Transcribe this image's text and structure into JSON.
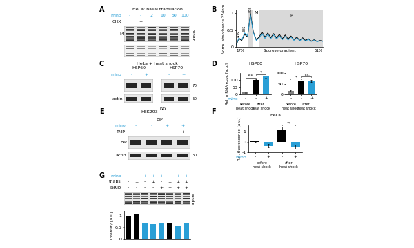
{
  "panels": {
    "A": {
      "letter": "A",
      "title": "HeLa: basal translation",
      "rows": [
        {
          "label": "mino",
          "color": "#2a9fd6",
          "cells": [
            "-",
            "-",
            "2",
            "10",
            "50",
            "100"
          ]
        },
        {
          "label": "CHX",
          "color": "#000000",
          "cells": [
            "-",
            "+",
            "-",
            "-",
            "-",
            "-"
          ]
        }
      ],
      "blot_label": "M",
      "side_label": "α-puro"
    },
    "C": {
      "letter": "C",
      "title": "HeLa + heat shock",
      "rows": [
        {
          "label": "mino",
          "color": "#2a9fd6",
          "cells": [
            "-",
            "+",
            "-",
            "+"
          ]
        }
      ],
      "blots": [
        "HSP60",
        "HSP70"
      ],
      "markers": [
        "70",
        "50"
      ],
      "loading": "actin"
    },
    "E": {
      "letter": "E",
      "title": "HEK293",
      "title_superscript": "DAX",
      "target": "BiP",
      "rows": [
        {
          "label": "mino",
          "color": "#2a9fd6",
          "cells": [
            "-",
            "-",
            "+",
            "+"
          ]
        },
        {
          "label": "TMP",
          "color": "#000000",
          "cells": [
            "-",
            "+",
            "-",
            "+"
          ]
        }
      ],
      "band_label": "BiP",
      "markers": [
        "50"
      ],
      "loading": "actin"
    },
    "G": {
      "letter": "G",
      "rows": [
        {
          "label": "mino",
          "color": "#2a9fd6",
          "cells": [
            "-",
            "-",
            "+",
            "+",
            "+",
            "-",
            "+",
            "+"
          ]
        },
        {
          "label": "thaps",
          "color": "#000000",
          "cells": [
            "-",
            "+",
            "-",
            "+",
            "-",
            "+",
            "+",
            "+"
          ]
        },
        {
          "label": "ISRIB",
          "color": "#000000",
          "cells": [
            "-",
            "-",
            "-",
            "-",
            "+",
            "+",
            "+",
            "+"
          ]
        }
      ],
      "side_label": "α-puro"
    }
  },
  "chart_data": [
    {
      "panel": "B",
      "type": "line",
      "ylabel": "Norm. absorbance 254nm",
      "xlabel": "Sucrose gradient",
      "x": [
        0,
        1,
        2,
        3,
        4,
        5,
        6,
        7,
        8,
        9,
        10,
        11,
        12,
        13,
        14,
        15,
        16,
        17,
        18,
        19,
        20,
        21,
        22,
        23,
        24,
        25,
        26,
        27,
        28,
        29,
        30
      ],
      "series": [
        {
          "color": "#000000",
          "values": [
            0.05,
            0.25,
            0.2,
            0.38,
            0.3,
            1.0,
            0.45,
            0.22,
            0.3,
            0.45,
            0.3,
            0.42,
            0.28,
            0.4,
            0.27,
            0.38,
            0.25,
            0.36,
            0.24,
            0.33,
            0.22,
            0.3,
            0.2,
            0.28,
            0.2,
            0.25,
            0.18,
            0.22,
            0.17,
            0.2,
            0.18
          ]
        },
        {
          "color": "#2a9fd6",
          "values": [
            0.05,
            0.27,
            0.22,
            0.42,
            0.33,
            0.95,
            0.42,
            0.2,
            0.27,
            0.4,
            0.26,
            0.38,
            0.25,
            0.36,
            0.24,
            0.34,
            0.22,
            0.32,
            0.21,
            0.3,
            0.2,
            0.27,
            0.19,
            0.25,
            0.18,
            0.23,
            0.17,
            0.21,
            0.16,
            0.19,
            0.17
          ]
        }
      ],
      "xlim": [
        0,
        30
      ],
      "ylim": [
        0,
        1.1
      ],
      "yticks": [
        0,
        0.5,
        1
      ],
      "tick_labels": "y",
      "regions": [
        {
          "label": "M",
          "from": 4,
          "to": 6
        },
        {
          "label": "P",
          "from": 8,
          "to": 30
        }
      ],
      "peak_labels": [
        {
          "text": "40S",
          "x": 1
        },
        {
          "text": "60S",
          "x": 3
        },
        {
          "text": "80S",
          "x": 5
        }
      ],
      "gradient_labels": [
        "17%",
        "51%"
      ]
    },
    {
      "panel": "D",
      "type": "bar",
      "title": "HSP60",
      "ylabel": "Rel. mRNA expr. [a.u.]",
      "categories": [
        "-",
        "-",
        "+"
      ],
      "row_label": "mino",
      "groups": [
        {
          "label": "before heat shock",
          "size": 1
        },
        {
          "label": "after heat shock",
          "size": 2
        }
      ],
      "values": [
        12,
        100,
        125
      ],
      "errors": [
        3,
        8,
        6
      ],
      "colors": [
        "#808080",
        "#000000",
        "#2a9fd6"
      ],
      "ylim": [
        0,
        150
      ],
      "yticks": [
        0,
        50,
        100
      ],
      "significance": [
        {
          "from": 0,
          "to": 1,
          "text": "***"
        },
        {
          "from": 1,
          "to": 2,
          "text": "*"
        }
      ]
    },
    {
      "type": "bar",
      "title": "HSP70",
      "categories": [
        "-",
        "-",
        "+"
      ],
      "groups": [
        {
          "label": "before heat shock",
          "size": 1
        },
        {
          "label": "after heat shock",
          "size": 2
        }
      ],
      "values": [
        15,
        60,
        63
      ],
      "errors": [
        3,
        6,
        5
      ],
      "colors": [
        "#808080",
        "#000000",
        "#2a9fd6"
      ],
      "ylim": [
        0,
        100
      ],
      "yticks": [
        0,
        50,
        100
      ],
      "significance": [
        {
          "from": 0,
          "to": 1,
          "text": "*"
        },
        {
          "from": 1,
          "to": 2,
          "text": "n.s."
        }
      ]
    },
    {
      "panel": "F",
      "type": "bar",
      "title": "HeLa",
      "ylabel": "Rel. fluorescence [a.u.]",
      "categories": [
        "-",
        "+",
        "-",
        "+"
      ],
      "row_label": "mino",
      "groups": [
        {
          "label": "before heat shock",
          "size": 2
        },
        {
          "label": "after heat shock",
          "size": 2
        }
      ],
      "values": [
        0.05,
        -0.35,
        1.1,
        -0.45
      ],
      "errors": [
        0.05,
        0.15,
        0.35,
        0.2
      ],
      "colors": [
        "#000000",
        "#2a9fd6",
        "#000000",
        "#2a9fd6"
      ],
      "ylim": [
        -1,
        1.6
      ],
      "yticks": [
        -1,
        0,
        1
      ],
      "significance": [
        {
          "from": 2,
          "to": 3,
          "text": "**"
        }
      ]
    },
    {
      "type": "bar",
      "ylabel": "Intensity [a.u.]",
      "values": [
        1.0,
        1.05,
        0.7,
        0.65,
        0.7,
        0.72,
        0.55,
        0.7
      ],
      "colors": [
        "#000000",
        "#000000",
        "#2a9fd6",
        "#2a9fd6",
        "#2a9fd6",
        "#000000",
        "#2a9fd6",
        "#2a9fd6"
      ],
      "ylim": [
        0,
        1.2
      ],
      "yticks": [
        0,
        0.5,
        1
      ],
      "tick_labels": "y"
    }
  ]
}
